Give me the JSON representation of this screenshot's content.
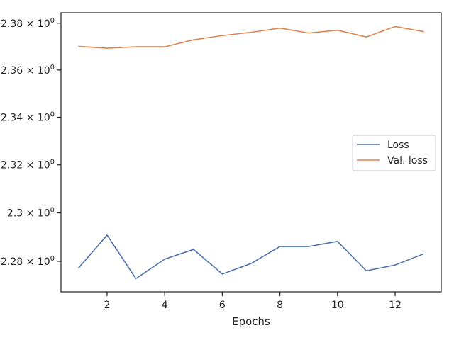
{
  "chart_data": {
    "type": "line",
    "title": "",
    "xlabel": "Epochs",
    "ylabel": "",
    "x": [
      1,
      2,
      3,
      4,
      5,
      6,
      7,
      8,
      9,
      10,
      11,
      12,
      13
    ],
    "series": [
      {
        "name": "Loss",
        "color": "#4c72b0",
        "values": [
          2.2771,
          2.2908,
          2.2729,
          2.2809,
          2.2849,
          2.2748,
          2.2791,
          2.2861,
          2.2861,
          2.2882,
          2.2761,
          2.2785,
          2.2831
        ]
      },
      {
        "name": "Val. loss",
        "color": "#dd8452",
        "values": [
          2.3701,
          2.3693,
          2.3699,
          2.3699,
          2.3729,
          2.3747,
          2.3761,
          2.3779,
          2.3758,
          2.377,
          2.3741,
          2.3786,
          2.3764
        ]
      }
    ],
    "xlim": [
      0.4,
      13.6
    ],
    "ylim": [
      2.2675,
      2.3845
    ],
    "scale_y": "log",
    "xticks": [
      2,
      4,
      6,
      8,
      10,
      12
    ],
    "xtick_labels": [
      "2",
      "4",
      "6",
      "8",
      "10",
      "12"
    ],
    "yticks": [
      2.28,
      2.3,
      2.32,
      2.34,
      2.36,
      2.38
    ],
    "ytick_labels": [
      "2.28",
      "2.3",
      "2.32",
      "2.34",
      "2.36",
      "2.38"
    ],
    "ytick_multiplier": "× 10",
    "ytick_exponent": "0",
    "grid": false,
    "legend_position": "center-right"
  }
}
